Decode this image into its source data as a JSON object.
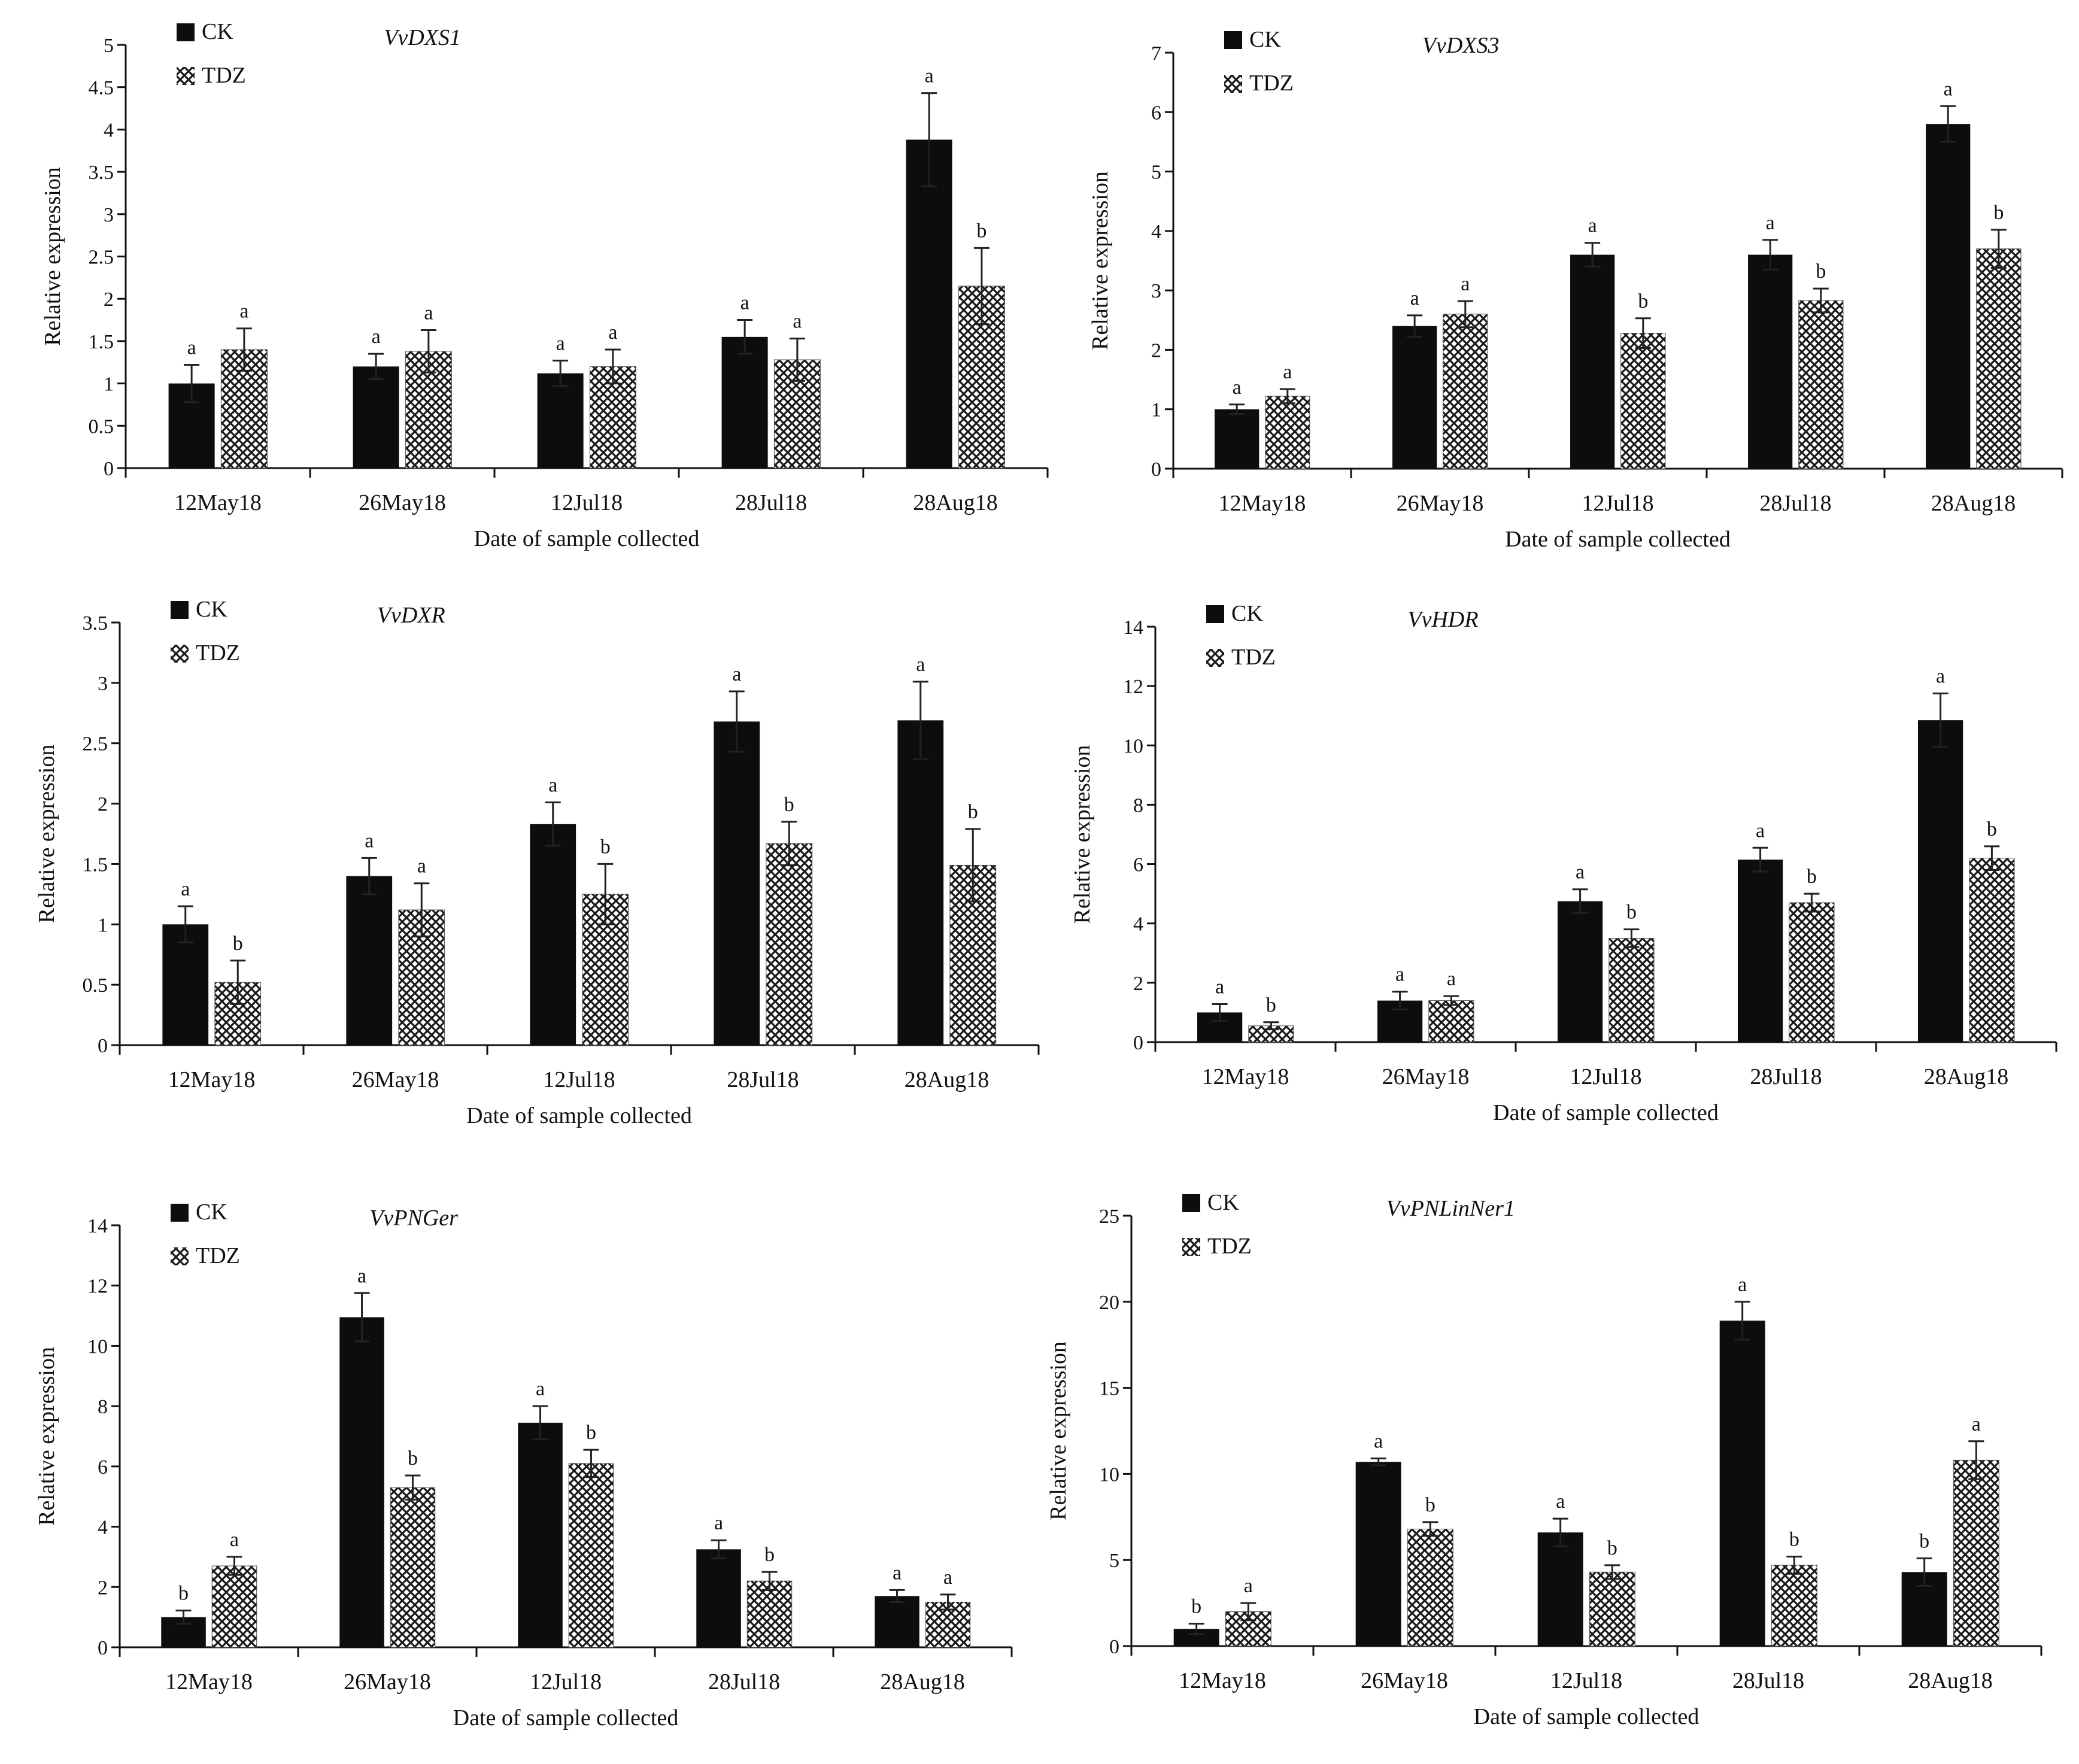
{
  "figure": {
    "legend_ck": "CK",
    "legend_tdz": "TDZ",
    "colors": {
      "ck": "#0d0d0d",
      "tdz_hatch": "#1a1a1a",
      "tdz_bg": "#ffffff",
      "axis": "#111111"
    }
  },
  "chart_data": [
    {
      "type": "bar",
      "title": "VvDXS1",
      "xlabel": "Date of sample collected",
      "ylabel": "Relative expression",
      "categories": [
        "12May18",
        "26May18",
        "12Jul18",
        "28Jul18",
        "28Aug18"
      ],
      "ylim": [
        0,
        5
      ],
      "yticks": [
        "0",
        "0.5",
        "1",
        "1.5",
        "2",
        "2.5",
        "3",
        "3.5",
        "4",
        "4.5",
        "5"
      ],
      "legend_position": "top-left",
      "series": [
        {
          "name": "CK",
          "values": [
            1.0,
            1.2,
            1.12,
            1.55,
            3.88
          ],
          "errors": [
            0.22,
            0.15,
            0.15,
            0.2,
            0.55
          ],
          "letters": [
            "a",
            "a",
            "a",
            "a",
            "a"
          ]
        },
        {
          "name": "TDZ",
          "values": [
            1.4,
            1.38,
            1.2,
            1.28,
            2.15
          ],
          "errors": [
            0.25,
            0.25,
            0.2,
            0.25,
            0.45
          ],
          "letters": [
            "a",
            "a",
            "a",
            "a",
            "b"
          ]
        }
      ]
    },
    {
      "type": "bar",
      "title": "VvDXS3",
      "xlabel": "Date of sample collected",
      "ylabel": "Relative expression",
      "categories": [
        "12May18",
        "26May18",
        "12Jul18",
        "28Jul18",
        "28Aug18"
      ],
      "ylim": [
        0,
        7
      ],
      "yticks": [
        "0",
        "1",
        "2",
        "3",
        "4",
        "5",
        "6",
        "7"
      ],
      "legend_position": "top-left",
      "series": [
        {
          "name": "CK",
          "values": [
            1.0,
            2.4,
            3.6,
            3.6,
            5.8
          ],
          "errors": [
            0.08,
            0.18,
            0.2,
            0.25,
            0.3
          ],
          "letters": [
            "a",
            "a",
            "a",
            "a",
            "a"
          ]
        },
        {
          "name": "TDZ",
          "values": [
            1.22,
            2.6,
            2.28,
            2.83,
            3.7
          ],
          "errors": [
            0.12,
            0.22,
            0.25,
            0.2,
            0.32
          ],
          "letters": [
            "a",
            "a",
            "b",
            "b",
            "b"
          ]
        }
      ]
    },
    {
      "type": "bar",
      "title": "VvDXR",
      "xlabel": "Date of sample collected",
      "ylabel": "Relative expression",
      "categories": [
        "12May18",
        "26May18",
        "12Jul18",
        "28Jul18",
        "28Aug18"
      ],
      "ylim": [
        0,
        3.5
      ],
      "yticks": [
        "0",
        "0.5",
        "1",
        "1.5",
        "2",
        "2.5",
        "3",
        "3.5"
      ],
      "legend_position": "top-left",
      "series": [
        {
          "name": "CK",
          "values": [
            1.0,
            1.4,
            1.83,
            2.68,
            2.69
          ],
          "errors": [
            0.15,
            0.15,
            0.18,
            0.25,
            0.32
          ],
          "letters": [
            "a",
            "a",
            "a",
            "a",
            "a"
          ]
        },
        {
          "name": "TDZ",
          "values": [
            0.52,
            1.12,
            1.25,
            1.67,
            1.49
          ],
          "errors": [
            0.18,
            0.22,
            0.25,
            0.18,
            0.3
          ],
          "letters": [
            "b",
            "a",
            "b",
            "b",
            "b"
          ]
        }
      ]
    },
    {
      "type": "bar",
      "title": "VvHDR",
      "xlabel": "Date of sample collected",
      "ylabel": "Relative expression",
      "categories": [
        "12May18",
        "26May18",
        "12Jul18",
        "28Jul18",
        "28Aug18"
      ],
      "ylim": [
        0,
        14
      ],
      "yticks": [
        "0",
        "2",
        "4",
        "6",
        "8",
        "10",
        "12",
        "14"
      ],
      "legend_position": "top-left",
      "series": [
        {
          "name": "CK",
          "values": [
            1.0,
            1.4,
            4.75,
            6.15,
            10.85
          ],
          "errors": [
            0.28,
            0.3,
            0.4,
            0.4,
            0.9
          ],
          "letters": [
            "a",
            "a",
            "a",
            "a",
            "a"
          ]
        },
        {
          "name": "TDZ",
          "values": [
            0.55,
            1.4,
            3.5,
            4.7,
            6.2
          ],
          "errors": [
            0.12,
            0.15,
            0.3,
            0.3,
            0.4
          ],
          "letters": [
            "b",
            "a",
            "b",
            "b",
            "b"
          ]
        }
      ]
    },
    {
      "type": "bar",
      "title": "VvPNGer",
      "xlabel": "Date of sample collected",
      "ylabel": "Relative expression",
      "categories": [
        "12May18",
        "26May18",
        "12Jul18",
        "28Jul18",
        "28Aug18"
      ],
      "ylim": [
        0,
        14
      ],
      "yticks": [
        "0",
        "2",
        "4",
        "6",
        "8",
        "10",
        "12",
        "14"
      ],
      "legend_position": "top-left",
      "series": [
        {
          "name": "CK",
          "values": [
            1.0,
            10.95,
            7.45,
            3.25,
            1.7
          ],
          "errors": [
            0.22,
            0.8,
            0.55,
            0.3,
            0.2
          ],
          "letters": [
            "b",
            "a",
            "a",
            "a",
            "a"
          ]
        },
        {
          "name": "TDZ",
          "values": [
            2.7,
            5.3,
            6.1,
            2.2,
            1.5
          ],
          "errors": [
            0.3,
            0.4,
            0.45,
            0.3,
            0.25
          ],
          "letters": [
            "a",
            "b",
            "b",
            "b",
            "a"
          ]
        }
      ]
    },
    {
      "type": "bar",
      "title": "VvPNLinNer1",
      "xlabel": "Date of sample collected",
      "ylabel": "Relative expression",
      "categories": [
        "12May18",
        "26May18",
        "12Jul18",
        "28Jul18",
        "28Aug18"
      ],
      "ylim": [
        0,
        25
      ],
      "yticks": [
        "0",
        "5",
        "10",
        "15",
        "20",
        "25"
      ],
      "legend_position": "top-left",
      "series": [
        {
          "name": "CK",
          "values": [
            1.0,
            10.7,
            6.6,
            18.9,
            4.3
          ],
          "errors": [
            0.3,
            0.2,
            0.8,
            1.1,
            0.8
          ],
          "letters": [
            "b",
            "a",
            "a",
            "a",
            "b"
          ]
        },
        {
          "name": "TDZ",
          "values": [
            2.0,
            6.8,
            4.3,
            4.7,
            10.8
          ],
          "errors": [
            0.5,
            0.4,
            0.4,
            0.5,
            1.1
          ],
          "letters": [
            "a",
            "b",
            "b",
            "b",
            "a"
          ]
        }
      ]
    }
  ]
}
